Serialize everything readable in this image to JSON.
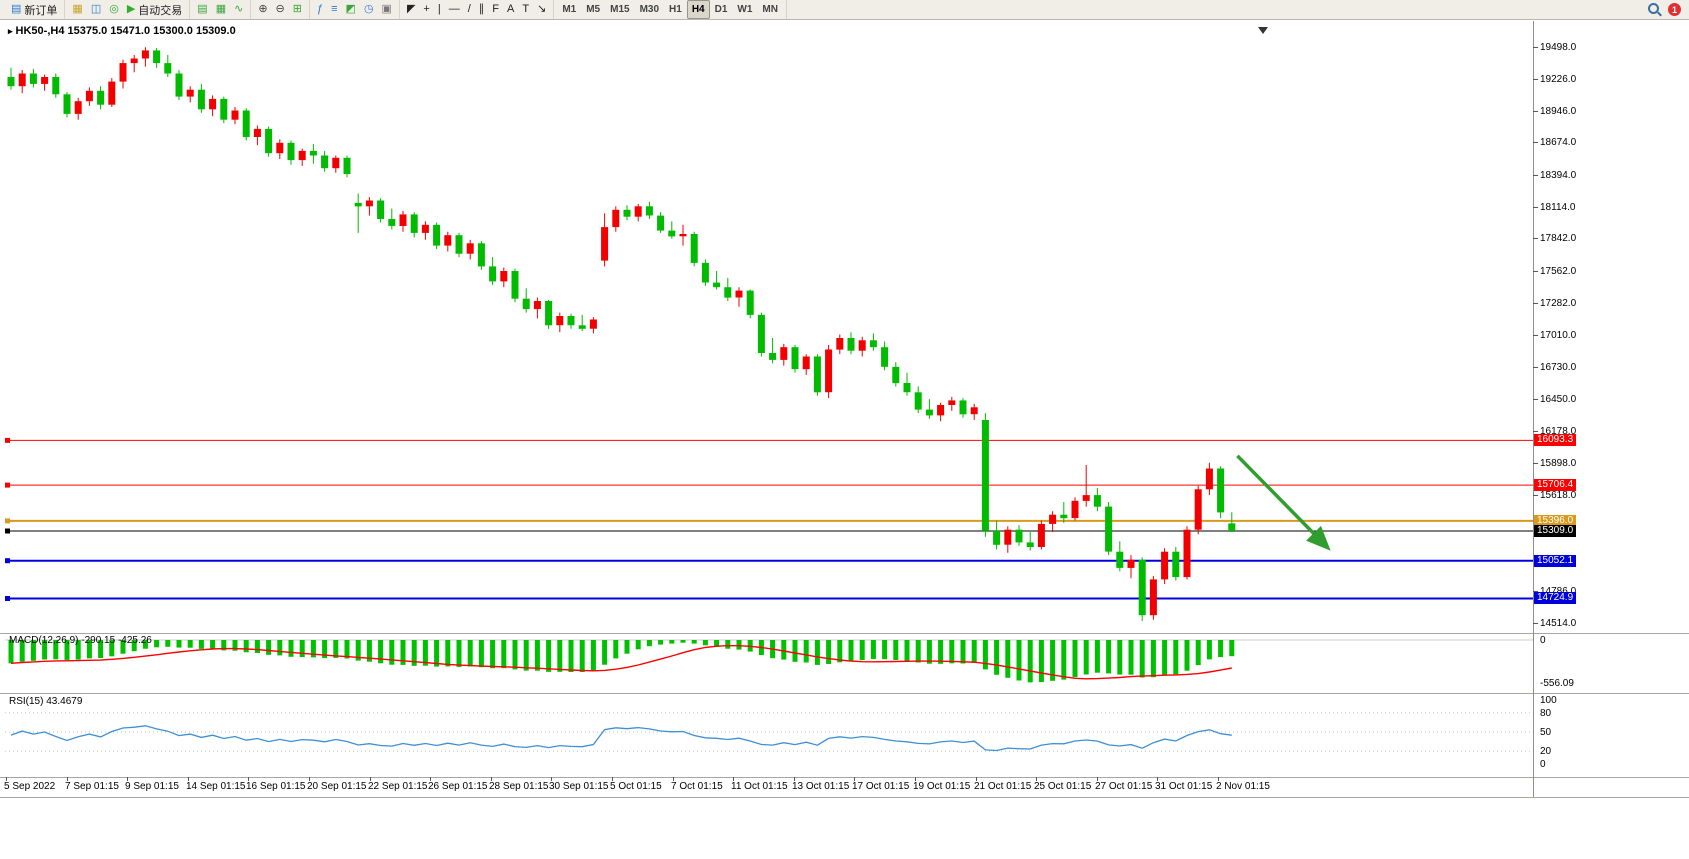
{
  "toolbar": {
    "badge": "1",
    "groups": [
      {
        "name": "trade",
        "items": [
          {
            "name": "new-order-button",
            "glyph": "▤",
            "color": "#2b7bd4",
            "label": "新订单"
          }
        ]
      },
      {
        "name": "windows",
        "items": [
          {
            "name": "new-chart-button",
            "glyph": "▦",
            "color": "#c9a227"
          },
          {
            "name": "profiles-button",
            "glyph": "◫",
            "color": "#2b7bd4"
          },
          {
            "name": "alerts-button",
            "glyph": "◎",
            "color": "#3aa63a"
          },
          {
            "name": "auto-trading-button",
            "glyph": "▶",
            "color": "#2fae2f",
            "label": "自动交易"
          }
        ]
      },
      {
        "name": "chart-types",
        "items": [
          {
            "name": "bar-chart-button",
            "glyph": "▤",
            "color": "#3aa63a"
          },
          {
            "name": "candlestick-button",
            "glyph": "▦",
            "color": "#3aa63a"
          },
          {
            "name": "line-chart-button",
            "glyph": "∿",
            "color": "#3aa63a"
          }
        ]
      },
      {
        "name": "zoom",
        "items": [
          {
            "name": "zoom-in-button",
            "glyph": "⊕",
            "color": "#444444"
          },
          {
            "name": "zoom-out-button",
            "glyph": "⊖",
            "color": "#444444"
          },
          {
            "name": "tile-windows-button",
            "glyph": "⊞",
            "color": "#3aa63a"
          }
        ]
      },
      {
        "name": "indicators",
        "items": [
          {
            "name": "indicators-button",
            "glyph": "ƒ",
            "color": "#2b7bd4"
          },
          {
            "name": "indicator-list-button",
            "glyph": "≡",
            "color": "#2b7bd4"
          },
          {
            "name": "add-chart-button",
            "glyph": "◩",
            "color": "#3aa63a"
          },
          {
            "name": "clock-button",
            "glyph": "◷",
            "color": "#2b7bd4"
          },
          {
            "name": "data-window-button",
            "glyph": "▣",
            "color": "#777777"
          }
        ]
      },
      {
        "name": "objects",
        "items": [
          {
            "name": "cursor-button",
            "glyph": "◤",
            "color": "#222222"
          },
          {
            "name": "crosshair-button",
            "glyph": "+",
            "color": "#222222"
          },
          {
            "name": "vertical-line-button",
            "glyph": "|",
            "color": "#222222"
          },
          {
            "name": "horizontal-line-button",
            "glyph": "—",
            "color": "#222222"
          },
          {
            "name": "trendline-button",
            "glyph": "/",
            "color": "#222222"
          },
          {
            "name": "channel-button",
            "glyph": "∥",
            "color": "#222222"
          },
          {
            "name": "fibonacci-button",
            "glyph": "F",
            "color": "#222222"
          },
          {
            "name": "text-button",
            "glyph": "A",
            "color": "#222222"
          },
          {
            "name": "label-button",
            "glyph": "T",
            "color": "#222222"
          },
          {
            "name": "arrows-button",
            "glyph": "↘",
            "color": "#222222"
          }
        ]
      },
      {
        "name": "timeframes",
        "items": [
          {
            "name": "tf-m1",
            "label": "M1"
          },
          {
            "name": "tf-m5",
            "label": "M5"
          },
          {
            "name": "tf-m15",
            "label": "M15"
          },
          {
            "name": "tf-m30",
            "label": "M30"
          },
          {
            "name": "tf-h1",
            "label": "H1"
          },
          {
            "name": "tf-h4",
            "label": "H4",
            "active": true
          },
          {
            "name": "tf-d1",
            "label": "D1"
          },
          {
            "name": "tf-w1",
            "label": "W1"
          },
          {
            "name": "tf-mn",
            "label": "MN"
          }
        ]
      }
    ]
  },
  "chart": {
    "title_marker": "▸",
    "title": "HK50-,H4 15375.0 15471.0 15300.0 15309.0"
  },
  "macd": {
    "label": "MACD(12,26,9) -290.15 -425.26",
    "axis": [
      "0",
      "-556.09"
    ]
  },
  "rsi": {
    "label": "RSI(15) 43.4679",
    "axis": [
      "100",
      "80",
      "50",
      "20",
      "0"
    ]
  },
  "chart_data": {
    "type": "candlestick",
    "symbol": "HK50-",
    "timeframe": "H4",
    "current_ohlc": [
      15375.0,
      15471.0,
      15300.0,
      15309.0
    ],
    "up_color": "#F20000",
    "down_color": "#00BB00",
    "y_labels": [
      19498.0,
      19226.0,
      18946.0,
      18674.0,
      18394.0,
      18114.0,
      17842.0,
      17562.0,
      17282.0,
      17010.0,
      16730.0,
      16450.0,
      16178.0,
      15898.0,
      15618.0,
      14786.0,
      14514.0
    ],
    "hlines": [
      {
        "price": 16093.3,
        "label": "16093.3",
        "color": "#FF0000",
        "width": 1
      },
      {
        "price": 15706.4,
        "label": "15706.4",
        "color": "#FF0000",
        "width": 1
      },
      {
        "price": 15396.0,
        "label": "15396.0",
        "color": "#D99A1E",
        "width": 2
      },
      {
        "price": 15309.0,
        "label": "15309.0",
        "color": "#000000",
        "width": 1
      },
      {
        "price": 15052.1,
        "label": "15052.1",
        "color": "#0000DD",
        "width": 2
      },
      {
        "price": 14724.9,
        "label": "14724.9",
        "color": "#0000DD",
        "width": 2
      }
    ],
    "arrow": {
      "from_bar": 109.5,
      "from_price": 15960,
      "to_bar": 117.5,
      "to_price": 15170,
      "color": "#2F9E2F"
    },
    "indicators": {
      "macd": {
        "params": "12,26,9",
        "main": -290.15,
        "signal": -425.26,
        "axis_min": -556.09
      },
      "rsi": {
        "period": 15,
        "value": 43.4679,
        "levels": [
          80,
          50,
          20
        ]
      }
    },
    "time_labels": [
      "5 Sep 2022",
      "7 Sep 01:15",
      "9 Sep 01:15",
      "14 Sep 01:15",
      "16 Sep 01:15",
      "20 Sep 01:15",
      "22 Sep 01:15",
      "26 Sep 01:15",
      "28 Sep 01:15",
      "30 Sep 01:15",
      "5 Oct 01:15",
      "7 Oct 01:15",
      "11 Oct 01:15",
      "13 Oct 01:15",
      "17 Oct 01:15",
      "19 Oct 01:15",
      "21 Oct 01:15",
      "25 Oct 01:15",
      "27 Oct 01:15",
      "31 Oct 01:15",
      "2 Nov 01:15"
    ],
    "candles": [
      [
        19240,
        19320,
        19130,
        19160
      ],
      [
        19160,
        19300,
        19100,
        19270
      ],
      [
        19270,
        19310,
        19150,
        19180
      ],
      [
        19180,
        19260,
        19120,
        19240
      ],
      [
        19240,
        19270,
        19060,
        19090
      ],
      [
        19090,
        19110,
        18890,
        18920
      ],
      [
        18920,
        19060,
        18870,
        19030
      ],
      [
        19030,
        19150,
        18990,
        19120
      ],
      [
        19120,
        19160,
        18960,
        19000
      ],
      [
        19000,
        19230,
        18980,
        19200
      ],
      [
        19200,
        19390,
        19140,
        19360
      ],
      [
        19360,
        19430,
        19280,
        19400
      ],
      [
        19400,
        19498,
        19330,
        19470
      ],
      [
        19470,
        19490,
        19320,
        19360
      ],
      [
        19360,
        19430,
        19240,
        19270
      ],
      [
        19270,
        19300,
        19040,
        19070
      ],
      [
        19070,
        19160,
        19020,
        19130
      ],
      [
        19130,
        19180,
        18930,
        18960
      ],
      [
        18960,
        19080,
        18900,
        19050
      ],
      [
        19050,
        19070,
        18840,
        18870
      ],
      [
        18870,
        18980,
        18830,
        18950
      ],
      [
        18950,
        18970,
        18690,
        18720
      ],
      [
        18720,
        18820,
        18650,
        18790
      ],
      [
        18790,
        18810,
        18550,
        18580
      ],
      [
        18580,
        18700,
        18530,
        18670
      ],
      [
        18670,
        18690,
        18480,
        18520
      ],
      [
        18520,
        18620,
        18470,
        18600
      ],
      [
        18600,
        18660,
        18490,
        18560
      ],
      [
        18560,
        18600,
        18420,
        18450
      ],
      [
        18450,
        18560,
        18410,
        18540
      ],
      [
        18540,
        18560,
        18370,
        18400
      ],
      [
        18150,
        18230,
        17890,
        18120
      ],
      [
        18120,
        18200,
        18040,
        18170
      ],
      [
        18170,
        18190,
        17980,
        18010
      ],
      [
        18010,
        18100,
        17920,
        17950
      ],
      [
        17950,
        18080,
        17900,
        18050
      ],
      [
        18050,
        18070,
        17850,
        17890
      ],
      [
        17890,
        17990,
        17830,
        17960
      ],
      [
        17960,
        17980,
        17750,
        17780
      ],
      [
        17780,
        17900,
        17730,
        17870
      ],
      [
        17870,
        17890,
        17680,
        17710
      ],
      [
        17710,
        17830,
        17660,
        17800
      ],
      [
        17800,
        17820,
        17570,
        17600
      ],
      [
        17600,
        17680,
        17440,
        17470
      ],
      [
        17470,
        17590,
        17420,
        17560
      ],
      [
        17560,
        17580,
        17290,
        17320
      ],
      [
        17320,
        17410,
        17200,
        17230
      ],
      [
        17230,
        17330,
        17150,
        17300
      ],
      [
        17300,
        17310,
        17060,
        17090
      ],
      [
        17090,
        17200,
        17030,
        17170
      ],
      [
        17170,
        17190,
        17060,
        17090
      ],
      [
        17090,
        17180,
        17040,
        17060
      ],
      [
        17060,
        17160,
        17020,
        17140
      ],
      [
        17650,
        18060,
        17600,
        17940
      ],
      [
        17940,
        18120,
        17900,
        18090
      ],
      [
        18090,
        18130,
        18000,
        18030
      ],
      [
        18030,
        18140,
        17990,
        18120
      ],
      [
        18120,
        18160,
        18010,
        18040
      ],
      [
        18040,
        18070,
        17890,
        17910
      ],
      [
        17910,
        17990,
        17840,
        17860
      ],
      [
        17860,
        17960,
        17780,
        17880
      ],
      [
        17880,
        17900,
        17600,
        17630
      ],
      [
        17630,
        17660,
        17430,
        17460
      ],
      [
        17460,
        17560,
        17400,
        17420
      ],
      [
        17420,
        17500,
        17300,
        17330
      ],
      [
        17330,
        17420,
        17250,
        17390
      ],
      [
        17390,
        17400,
        17150,
        17180
      ],
      [
        17180,
        17200,
        16820,
        16850
      ],
      [
        16850,
        16980,
        16760,
        16790
      ],
      [
        16790,
        16930,
        16740,
        16900
      ],
      [
        16900,
        16920,
        16680,
        16710
      ],
      [
        16710,
        16840,
        16660,
        16820
      ],
      [
        16820,
        16840,
        16480,
        16510
      ],
      [
        16510,
        16920,
        16460,
        16880
      ],
      [
        16880,
        17010,
        16840,
        16980
      ],
      [
        16980,
        17030,
        16840,
        16870
      ],
      [
        16870,
        16990,
        16820,
        16960
      ],
      [
        16960,
        17020,
        16870,
        16900
      ],
      [
        16900,
        16950,
        16700,
        16730
      ],
      [
        16730,
        16770,
        16560,
        16590
      ],
      [
        16590,
        16680,
        16480,
        16510
      ],
      [
        16510,
        16560,
        16330,
        16360
      ],
      [
        16360,
        16450,
        16280,
        16310
      ],
      [
        16310,
        16420,
        16260,
        16400
      ],
      [
        16400,
        16470,
        16350,
        16440
      ],
      [
        16440,
        16460,
        16290,
        16320
      ],
      [
        16320,
        16410,
        16270,
        16380
      ],
      [
        16270,
        16330,
        15260,
        15310
      ],
      [
        15310,
        15400,
        15150,
        15190
      ],
      [
        15190,
        15350,
        15120,
        15320
      ],
      [
        15320,
        15360,
        15180,
        15210
      ],
      [
        15210,
        15300,
        15140,
        15170
      ],
      [
        15170,
        15400,
        15150,
        15370
      ],
      [
        15370,
        15480,
        15300,
        15450
      ],
      [
        15450,
        15560,
        15380,
        15420
      ],
      [
        15420,
        15600,
        15400,
        15570
      ],
      [
        15570,
        15880,
        15520,
        15620
      ],
      [
        15620,
        15680,
        15480,
        15520
      ],
      [
        15520,
        15560,
        15100,
        15130
      ],
      [
        15130,
        15220,
        14960,
        14990
      ],
      [
        14990,
        15100,
        14900,
        15060
      ],
      [
        15060,
        15080,
        14530,
        14580
      ],
      [
        14580,
        14920,
        14540,
        14890
      ],
      [
        14890,
        15160,
        14850,
        15130
      ],
      [
        15130,
        15170,
        14880,
        14910
      ],
      [
        14910,
        15350,
        14890,
        15320
      ],
      [
        15320,
        15700,
        15280,
        15670
      ],
      [
        15670,
        15900,
        15620,
        15850
      ],
      [
        15850,
        15870,
        15420,
        15470
      ],
      [
        15375,
        15471,
        15300,
        15309
      ]
    ]
  }
}
